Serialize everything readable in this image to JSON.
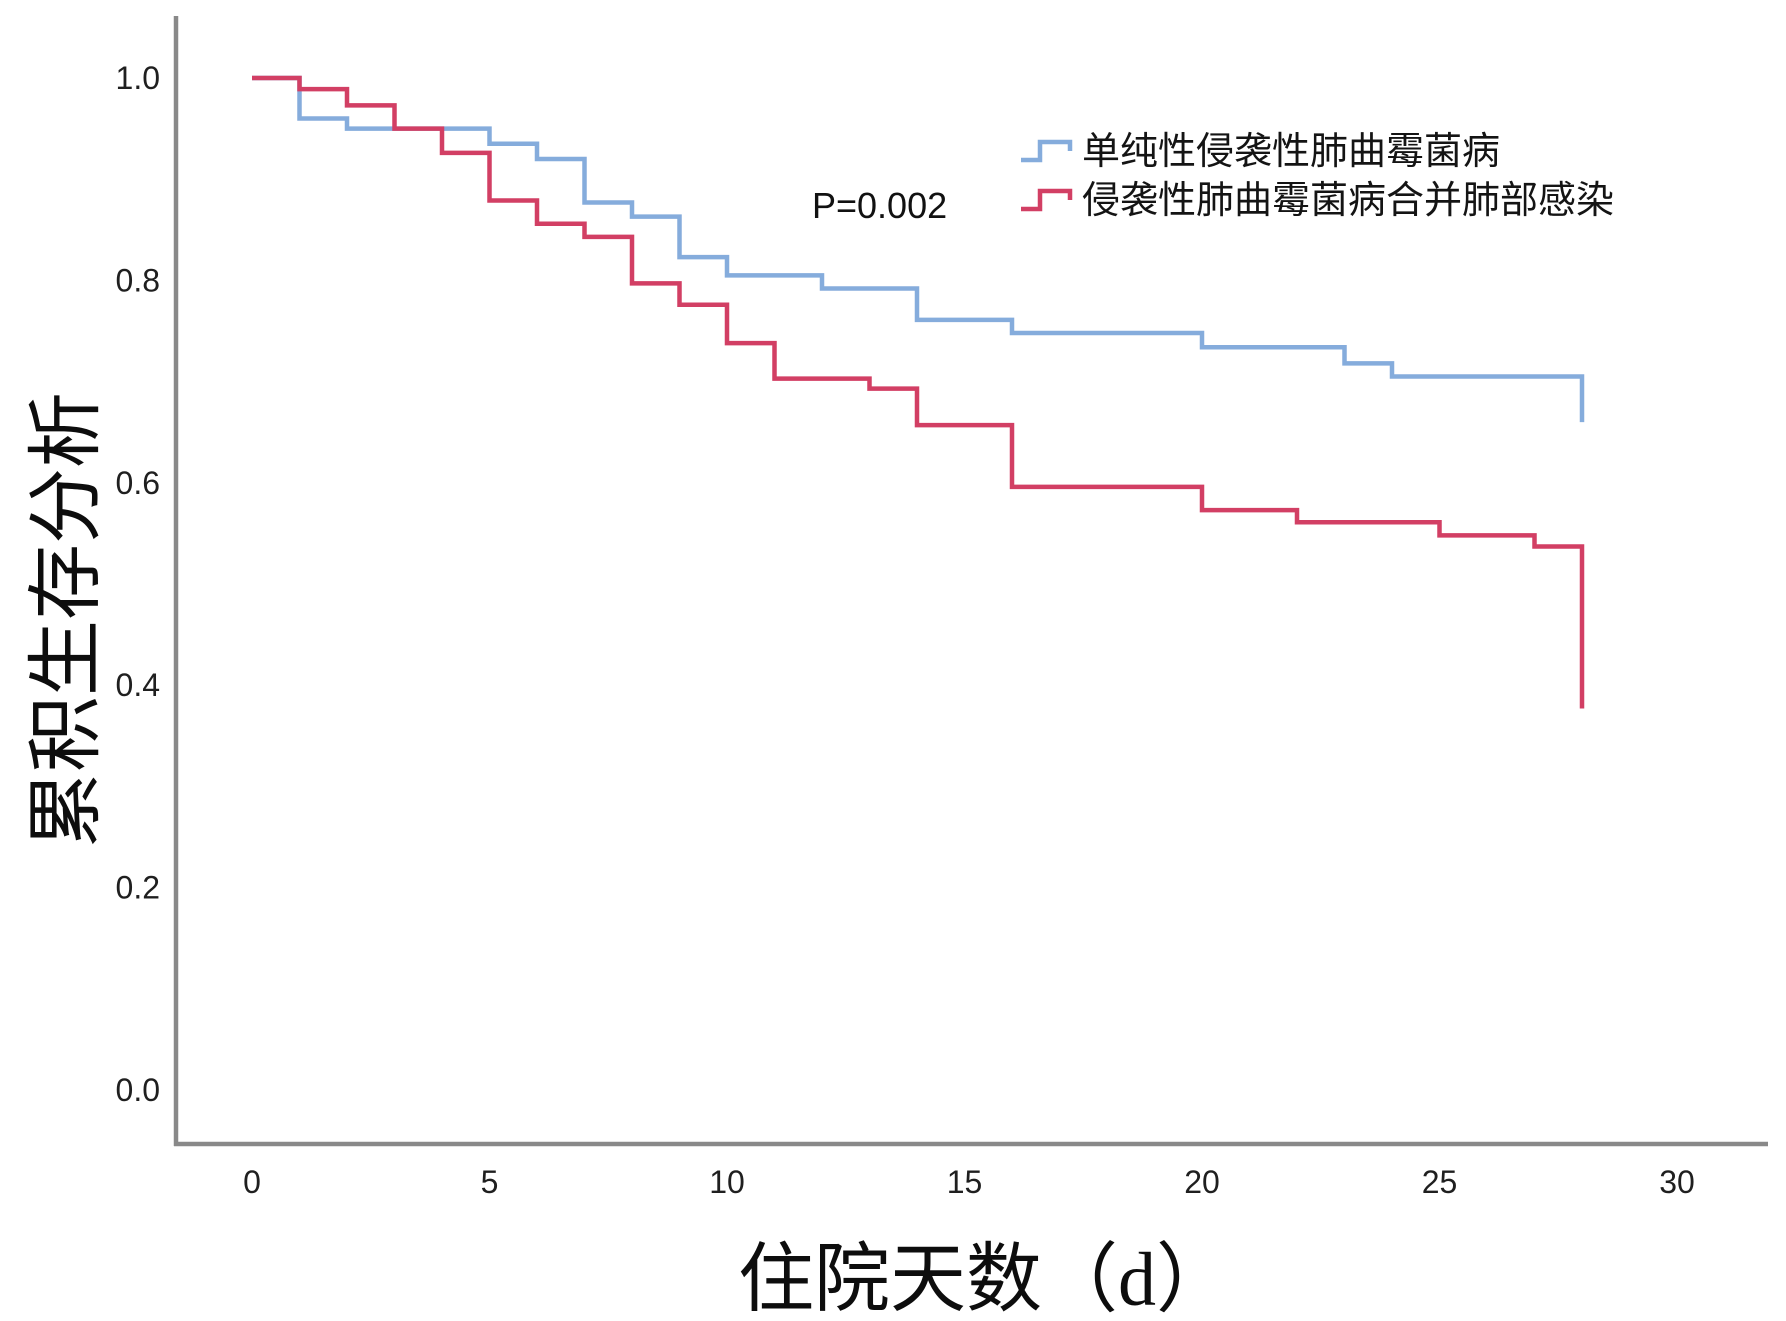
{
  "chart_data": {
    "type": "line",
    "subtype": "kaplan-meier-step-survival",
    "title": "",
    "xlabel": "住院天数（d）",
    "ylabel": "累积生存分析",
    "annotation": "P=0.002",
    "xlim": [
      0,
      30
    ],
    "ylim": [
      0.0,
      1.0
    ],
    "grid": false,
    "legend_position": "upper-right-inside",
    "x_ticks": [
      {
        "label": "0",
        "value": 0
      },
      {
        "label": "5",
        "value": 5
      },
      {
        "label": "10",
        "value": 10
      },
      {
        "label": "15",
        "value": 15
      },
      {
        "label": "20",
        "value": 20
      },
      {
        "label": "25",
        "value": 25
      },
      {
        "label": "30",
        "value": 30
      }
    ],
    "y_ticks": [
      {
        "label": "0.0",
        "value": 0.0
      },
      {
        "label": "0.2",
        "value": 0.2
      },
      {
        "label": "0.4",
        "value": 0.4
      },
      {
        "label": "0.6",
        "value": 0.6
      },
      {
        "label": "0.8",
        "value": 0.8
      },
      {
        "label": "1.0",
        "value": 1.0
      }
    ],
    "series": [
      {
        "name": "单纯性侵袭性肺曲霉菌病",
        "color": "#85ACDC",
        "points": [
          [
            0,
            1.0
          ],
          [
            1,
            0.96
          ],
          [
            2,
            0.95
          ],
          [
            5,
            0.935
          ],
          [
            6,
            0.92
          ],
          [
            7,
            0.877
          ],
          [
            8,
            0.863
          ],
          [
            9,
            0.823
          ],
          [
            10,
            0.805
          ],
          [
            12,
            0.792
          ],
          [
            14,
            0.761
          ],
          [
            16,
            0.748
          ],
          [
            20,
            0.734
          ],
          [
            23,
            0.718
          ],
          [
            24,
            0.705
          ],
          [
            28,
            0.66
          ]
        ]
      },
      {
        "name": "侵袭性肺曲霉菌病合并肺部感染",
        "color": "#D23F64",
        "points": [
          [
            0,
            1.0
          ],
          [
            1,
            0.989
          ],
          [
            2,
            0.973
          ],
          [
            3,
            0.95
          ],
          [
            4,
            0.926
          ],
          [
            5,
            0.879
          ],
          [
            6,
            0.856
          ],
          [
            7,
            0.843
          ],
          [
            8,
            0.797
          ],
          [
            9,
            0.776
          ],
          [
            10,
            0.738
          ],
          [
            11,
            0.703
          ],
          [
            13,
            0.693
          ],
          [
            14,
            0.657
          ],
          [
            16,
            0.596
          ],
          [
            20,
            0.573
          ],
          [
            22,
            0.561
          ],
          [
            25,
            0.548
          ],
          [
            27,
            0.537
          ],
          [
            28,
            0.377
          ]
        ]
      }
    ]
  },
  "colors": {
    "background": "#ffffff",
    "axis": "#898989",
    "text": "#1a1a1a",
    "series_blue": "#85ACDC",
    "series_red": "#D23F64"
  }
}
